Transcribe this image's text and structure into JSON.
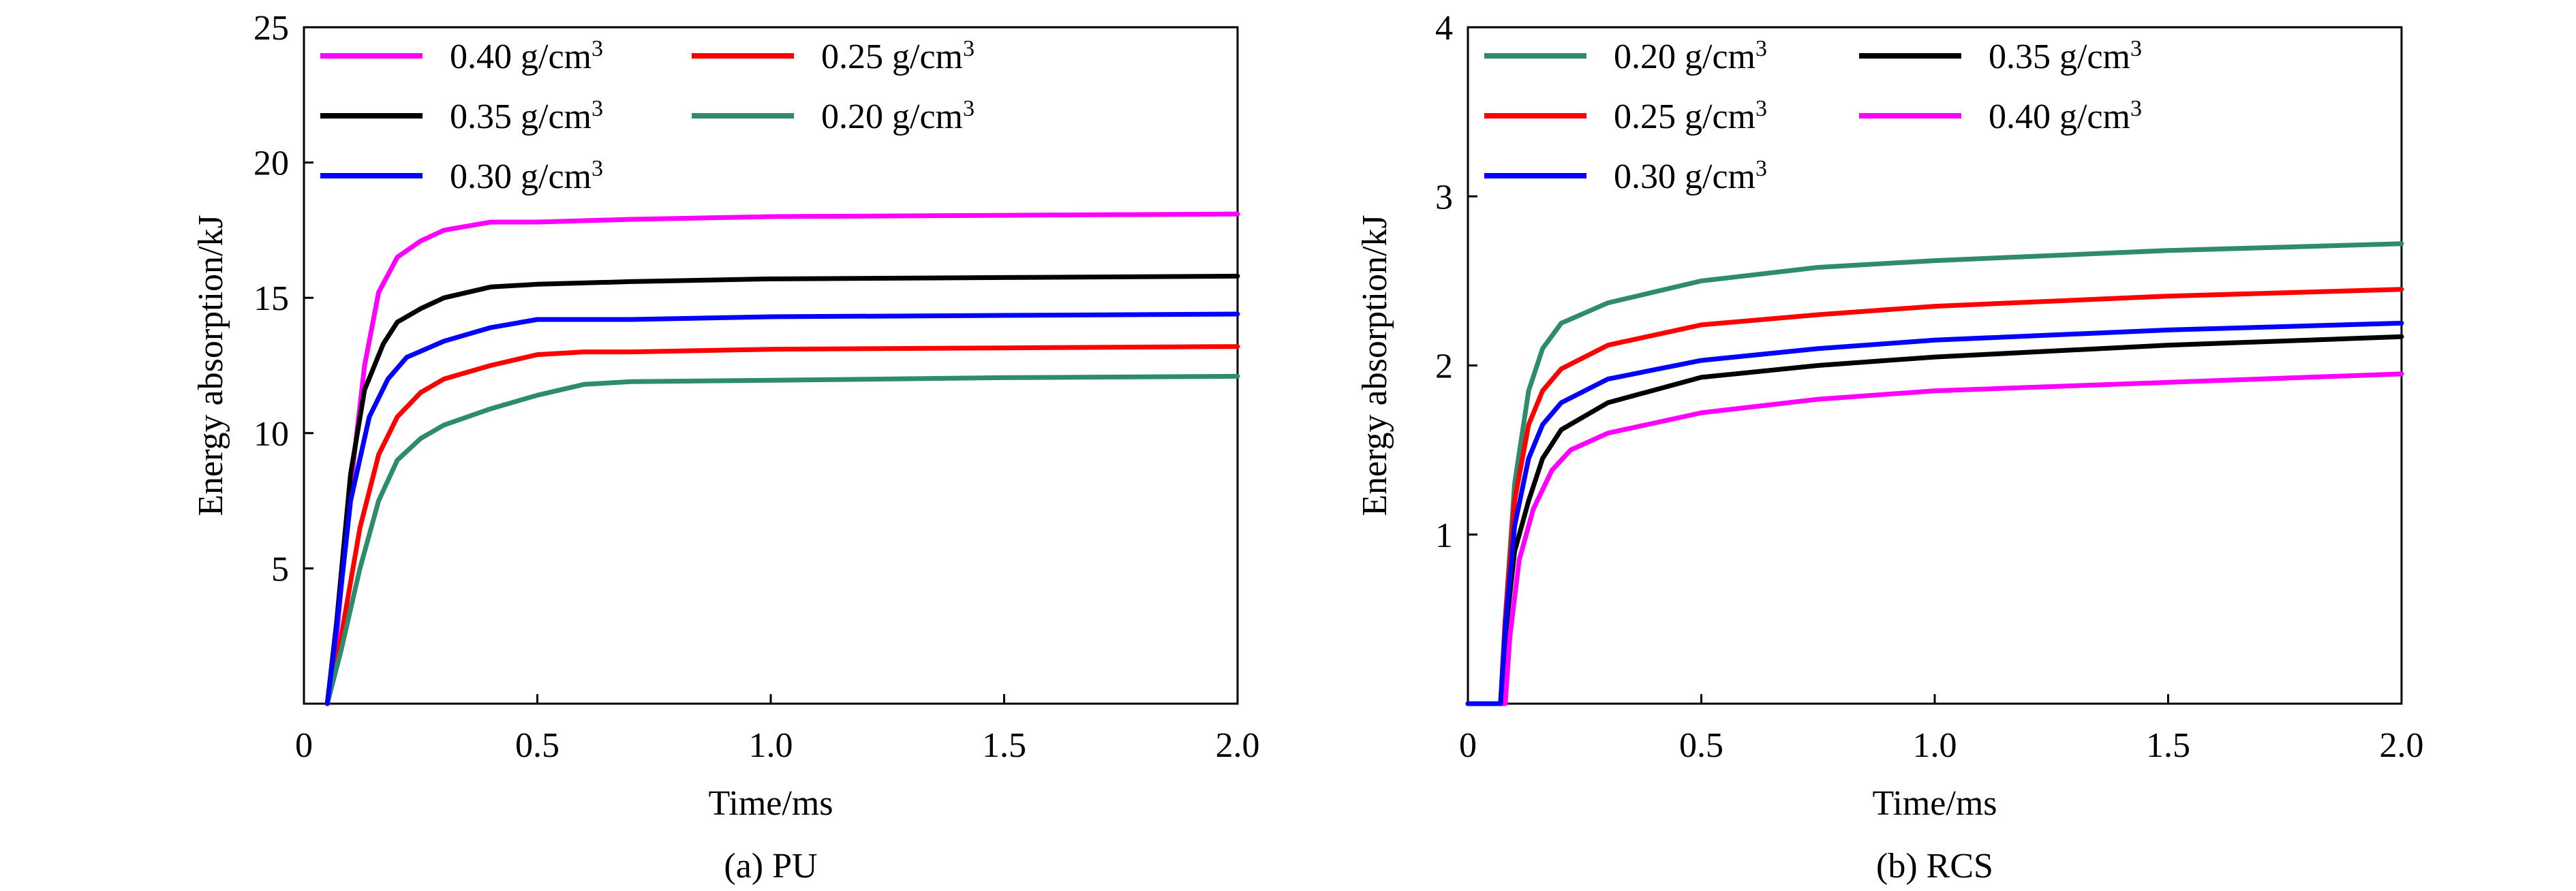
{
  "chart_data": [
    {
      "type": "line",
      "caption": "(a) PU",
      "xlabel": "Time/ms",
      "ylabel": "Energy absorption/kJ",
      "xlim": [
        0,
        2.0
      ],
      "ylim": [
        0,
        25
      ],
      "xticks": [
        0,
        0.5,
        1.0,
        1.5,
        2.0
      ],
      "xtick_labels": [
        "0",
        "0.5",
        "1.0",
        "1.5",
        "2.0"
      ],
      "yticks": [
        5,
        10,
        15,
        20,
        25
      ],
      "ytick_labels": [
        "5",
        "10",
        "15",
        "20",
        "25"
      ],
      "grid": false,
      "legend": {
        "placement": "top-left",
        "columns": 2
      },
      "series": [
        {
          "name": "0.40 g/cm",
          "unit_exp": "3",
          "color": "#ff00ff",
          "points": [
            [
              0.05,
              0
            ],
            [
              0.07,
              2.5
            ],
            [
              0.1,
              8
            ],
            [
              0.13,
              12.5
            ],
            [
              0.16,
              15.2
            ],
            [
              0.2,
              16.5
            ],
            [
              0.25,
              17.1
            ],
            [
              0.3,
              17.5
            ],
            [
              0.4,
              17.8
            ],
            [
              0.5,
              17.8
            ],
            [
              0.7,
              17.9
            ],
            [
              1.0,
              18.0
            ],
            [
              1.5,
              18.05
            ],
            [
              2.0,
              18.1
            ]
          ]
        },
        {
          "name": "0.25 g/cm",
          "unit_exp": "3",
          "color": "#ff0000",
          "points": [
            [
              0.05,
              0
            ],
            [
              0.08,
              2.5
            ],
            [
              0.12,
              6.5
            ],
            [
              0.16,
              9.2
            ],
            [
              0.2,
              10.6
            ],
            [
              0.25,
              11.5
            ],
            [
              0.3,
              12.0
            ],
            [
              0.4,
              12.5
            ],
            [
              0.5,
              12.9
            ],
            [
              0.6,
              13.0
            ],
            [
              0.7,
              13.0
            ],
            [
              1.0,
              13.1
            ],
            [
              1.5,
              13.15
            ],
            [
              2.0,
              13.2
            ]
          ]
        },
        {
          "name": "0.35 g/cm",
          "unit_exp": "3",
          "color": "#000000",
          "points": [
            [
              0.05,
              0
            ],
            [
              0.07,
              3.0
            ],
            [
              0.1,
              8.5
            ],
            [
              0.13,
              11.6
            ],
            [
              0.17,
              13.3
            ],
            [
              0.2,
              14.1
            ],
            [
              0.25,
              14.6
            ],
            [
              0.3,
              15.0
            ],
            [
              0.4,
              15.4
            ],
            [
              0.5,
              15.5
            ],
            [
              0.7,
              15.6
            ],
            [
              1.0,
              15.7
            ],
            [
              1.5,
              15.75
            ],
            [
              2.0,
              15.8
            ]
          ]
        },
        {
          "name": "0.20 g/cm",
          "unit_exp": "3",
          "color": "#2e8b6b",
          "points": [
            [
              0.05,
              0
            ],
            [
              0.08,
              2.0
            ],
            [
              0.12,
              5.0
            ],
            [
              0.16,
              7.5
            ],
            [
              0.2,
              9.0
            ],
            [
              0.25,
              9.8
            ],
            [
              0.3,
              10.3
            ],
            [
              0.4,
              10.9
            ],
            [
              0.5,
              11.4
            ],
            [
              0.6,
              11.8
            ],
            [
              0.7,
              11.9
            ],
            [
              1.0,
              11.95
            ],
            [
              1.5,
              12.05
            ],
            [
              2.0,
              12.1
            ]
          ]
        },
        {
          "name": "0.30 g/cm",
          "unit_exp": "3",
          "color": "#0000ff",
          "points": [
            [
              0.05,
              0
            ],
            [
              0.07,
              2.8
            ],
            [
              0.1,
              7.5
            ],
            [
              0.14,
              10.6
            ],
            [
              0.18,
              12.0
            ],
            [
              0.22,
              12.8
            ],
            [
              0.3,
              13.4
            ],
            [
              0.4,
              13.9
            ],
            [
              0.5,
              14.2
            ],
            [
              0.7,
              14.2
            ],
            [
              1.0,
              14.3
            ],
            [
              1.5,
              14.35
            ],
            [
              2.0,
              14.4
            ]
          ]
        }
      ]
    },
    {
      "type": "line",
      "caption": "(b) RCS",
      "xlabel": "Time/ms",
      "ylabel": "Energy absorption/kJ",
      "xlim": [
        0,
        2.0
      ],
      "ylim": [
        0,
        4
      ],
      "xticks": [
        0,
        0.5,
        1.0,
        1.5,
        2.0
      ],
      "xtick_labels": [
        "0",
        "0.5",
        "1.0",
        "1.5",
        "2.0"
      ],
      "yticks": [
        1,
        2,
        3,
        4
      ],
      "ytick_labels": [
        "1",
        "2",
        "3",
        "4"
      ],
      "grid": false,
      "legend": {
        "placement": "top-left",
        "columns": 2
      },
      "series": [
        {
          "name": "0.20 g/cm",
          "unit_exp": "3",
          "color": "#2e8b6b",
          "points": [
            [
              0.0,
              0
            ],
            [
              0.07,
              0
            ],
            [
              0.08,
              0.5
            ],
            [
              0.1,
              1.3
            ],
            [
              0.13,
              1.85
            ],
            [
              0.16,
              2.1
            ],
            [
              0.2,
              2.25
            ],
            [
              0.3,
              2.37
            ],
            [
              0.5,
              2.5
            ],
            [
              0.75,
              2.58
            ],
            [
              1.0,
              2.62
            ],
            [
              1.5,
              2.68
            ],
            [
              2.0,
              2.72
            ]
          ]
        },
        {
          "name": "0.35 g/cm",
          "unit_exp": "3",
          "color": "#000000",
          "points": [
            [
              0.0,
              0
            ],
            [
              0.07,
              0
            ],
            [
              0.08,
              0.4
            ],
            [
              0.1,
              0.9
            ],
            [
              0.13,
              1.2
            ],
            [
              0.16,
              1.45
            ],
            [
              0.2,
              1.62
            ],
            [
              0.3,
              1.78
            ],
            [
              0.5,
              1.93
            ],
            [
              0.75,
              2.0
            ],
            [
              1.0,
              2.05
            ],
            [
              1.5,
              2.12
            ],
            [
              2.0,
              2.17
            ]
          ]
        },
        {
          "name": "0.25 g/cm",
          "unit_exp": "3",
          "color": "#ff0000",
          "points": [
            [
              0.0,
              0
            ],
            [
              0.07,
              0
            ],
            [
              0.08,
              0.5
            ],
            [
              0.1,
              1.2
            ],
            [
              0.13,
              1.65
            ],
            [
              0.16,
              1.85
            ],
            [
              0.2,
              1.98
            ],
            [
              0.3,
              2.12
            ],
            [
              0.5,
              2.24
            ],
            [
              0.75,
              2.3
            ],
            [
              1.0,
              2.35
            ],
            [
              1.5,
              2.41
            ],
            [
              2.0,
              2.45
            ]
          ]
        },
        {
          "name": "0.40 g/cm",
          "unit_exp": "3",
          "color": "#ff00ff",
          "points": [
            [
              0.0,
              0
            ],
            [
              0.08,
              0
            ],
            [
              0.09,
              0.4
            ],
            [
              0.11,
              0.85
            ],
            [
              0.14,
              1.15
            ],
            [
              0.18,
              1.38
            ],
            [
              0.22,
              1.5
            ],
            [
              0.3,
              1.6
            ],
            [
              0.5,
              1.72
            ],
            [
              0.75,
              1.8
            ],
            [
              1.0,
              1.85
            ],
            [
              1.5,
              1.9
            ],
            [
              2.0,
              1.95
            ]
          ]
        },
        {
          "name": "0.30 g/cm",
          "unit_exp": "3",
          "color": "#0000ff",
          "points": [
            [
              0.0,
              0
            ],
            [
              0.07,
              0
            ],
            [
              0.08,
              0.45
            ],
            [
              0.1,
              1.05
            ],
            [
              0.13,
              1.45
            ],
            [
              0.16,
              1.65
            ],
            [
              0.2,
              1.78
            ],
            [
              0.3,
              1.92
            ],
            [
              0.5,
              2.03
            ],
            [
              0.75,
              2.1
            ],
            [
              1.0,
              2.15
            ],
            [
              1.5,
              2.21
            ],
            [
              2.0,
              2.25
            ]
          ]
        }
      ]
    }
  ]
}
